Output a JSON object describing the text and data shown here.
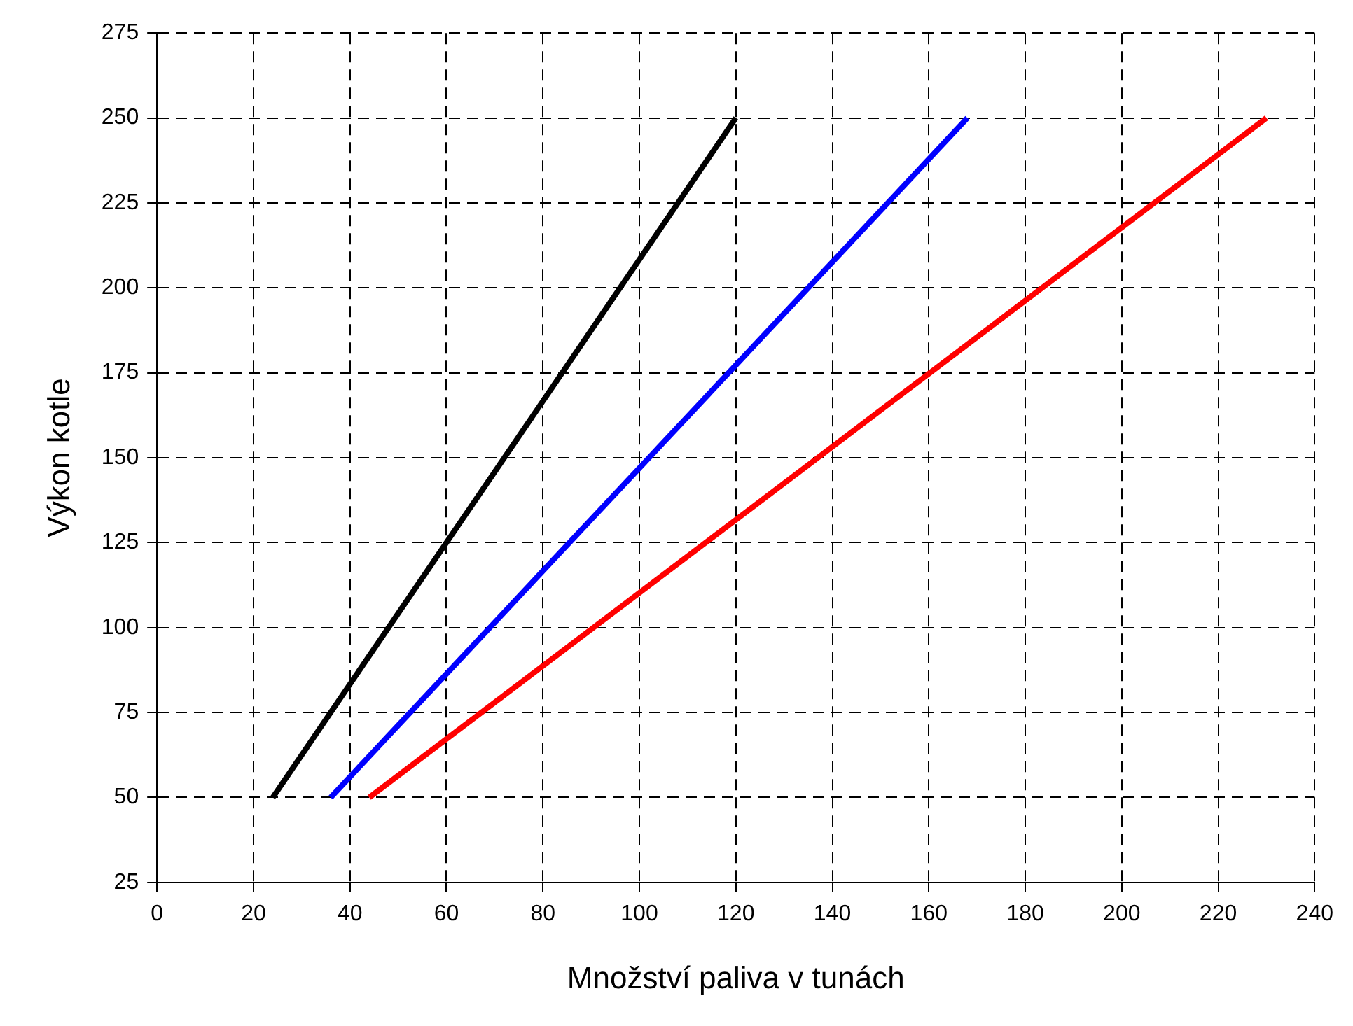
{
  "chart_data": {
    "type": "line",
    "xlabel": "Množství paliva v tunách",
    "ylabel": "Výkon kotle",
    "series": [
      {
        "color": "#000000",
        "x": [
          24,
          120
        ],
        "values": [
          50,
          250
        ]
      },
      {
        "color": "#0000ff",
        "x": [
          36,
          168
        ],
        "values": [
          50,
          250
        ]
      },
      {
        "color": "#ff0000",
        "x": [
          44,
          230
        ],
        "values": [
          50,
          250
        ]
      }
    ],
    "xlim": [
      0,
      240
    ],
    "xticks": [
      0,
      20,
      40,
      60,
      80,
      100,
      120,
      140,
      160,
      180,
      200,
      220,
      240
    ],
    "ylim": [
      25,
      275
    ],
    "yticks": [
      25,
      50,
      75,
      100,
      125,
      150,
      175,
      200,
      225,
      250,
      275
    ],
    "grid": true,
    "legend": false,
    "marker": "none",
    "line_style": "solid"
  }
}
